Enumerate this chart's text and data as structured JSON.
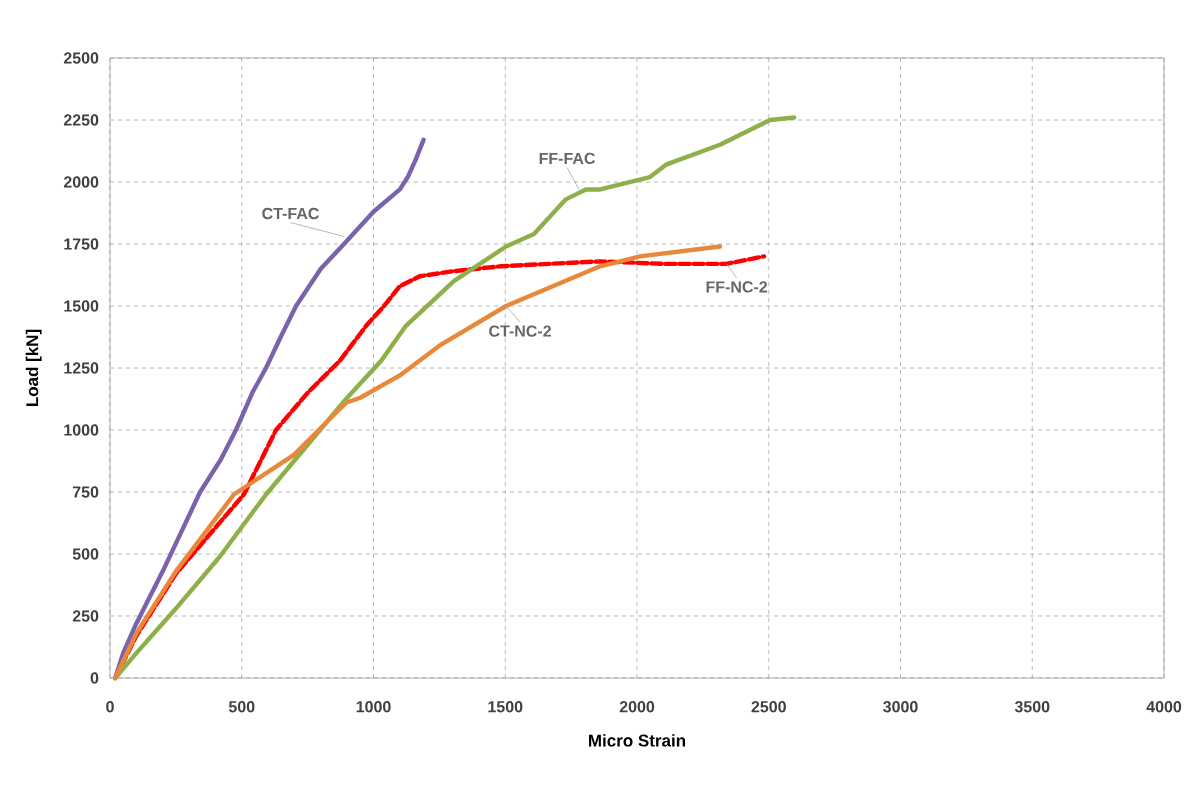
{
  "chart_data": {
    "type": "line",
    "xlabel": "Micro Strain",
    "ylabel": "Load [kN]",
    "xlim": [
      0,
      4000
    ],
    "ylim": [
      0,
      2500
    ],
    "xticks": [
      0,
      500,
      1000,
      1500,
      2000,
      2500,
      3000,
      3500,
      4000
    ],
    "yticks": [
      0,
      250,
      500,
      750,
      1000,
      1250,
      1500,
      1750,
      2000,
      2250,
      2500
    ],
    "grid": true,
    "marker": "none",
    "series": [
      {
        "color": "#7b62ad",
        "line_style": "solid",
        "x": [
          20,
          50,
          100,
          200,
          342,
          420,
          478,
          540,
          592,
          650,
          706,
          800,
          888,
          1000,
          1100,
          1130,
          1160,
          1190
        ],
        "values": [
          0,
          100,
          220,
          430,
          750,
          880,
          1000,
          1150,
          1250,
          1380,
          1500,
          1650,
          1750,
          1880,
          1970,
          2020,
          2090,
          2170
        ]
      },
      {
        "color": "#ff0000",
        "line_style": "dashed",
        "x": [
          20,
          100,
          250,
          508,
          630,
          750,
          873,
          972,
          1040,
          1100,
          1176,
          1300,
          1480,
          1860,
          2100,
          2338,
          2482
        ],
        "values": [
          0,
          170,
          420,
          740,
          1000,
          1150,
          1280,
          1420,
          1500,
          1580,
          1620,
          1640,
          1660,
          1680,
          1670,
          1670,
          1700
        ]
      },
      {
        "color": "#8db04a",
        "line_style": "solid",
        "x": [
          20,
          100,
          250,
          417,
          592,
          797,
          900,
          1030,
          1123,
          1305,
          1503,
          1609,
          1730,
          1806,
          1860,
          2049,
          2110,
          2315,
          2505,
          2596
        ],
        "values": [
          0,
          100,
          280,
          490,
          740,
          1000,
          1130,
          1280,
          1420,
          1600,
          1740,
          1790,
          1930,
          1970,
          1970,
          2020,
          2070,
          2150,
          2250,
          2260
        ]
      },
      {
        "color": "#e8883a",
        "line_style": "solid",
        "x": [
          20,
          100,
          250,
          470,
          698,
          896,
          950,
          1100,
          1250,
          1503,
          1860,
          2011,
          2315
        ],
        "values": [
          0,
          180,
          430,
          740,
          900,
          1110,
          1130,
          1220,
          1340,
          1500,
          1660,
          1700,
          1740
        ]
      }
    ],
    "annotations": [
      {
        "text": "CT-FAC",
        "x": 890,
        "y": 1780
      },
      {
        "text": "FF-FAC",
        "x": 1780,
        "y": 1970
      },
      {
        "text": "CT-NC-2",
        "x": 1503,
        "y": 1500
      },
      {
        "text": "FF-NC-2",
        "x": 2340,
        "y": 1670
      }
    ]
  }
}
